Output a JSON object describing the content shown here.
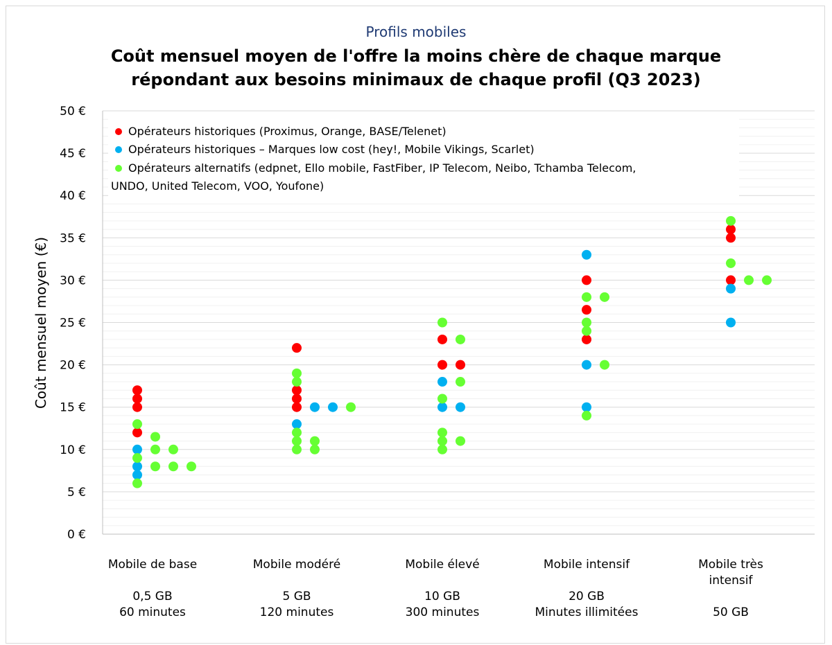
{
  "header": {
    "subtitle": "Profils mobiles",
    "title_line1": "Coût mensuel moyen de l'offre la moins chère de chaque marque",
    "title_line2": "répondant aux besoins minimaux de chaque profil (Q3 2023)"
  },
  "colors": {
    "historiques": "#ff0000",
    "low_cost": "#00b0f0",
    "alternatifs": "#66ff33",
    "grid": "#d9d9d9",
    "title_blue": "#1f3a73"
  },
  "categories": [
    {
      "name": "Mobile de base",
      "spec_line1": "0,5 GB",
      "spec_line2": "60 minutes"
    },
    {
      "name": "Mobile modéré",
      "spec_line1": "5 GB",
      "spec_line2": "120 minutes"
    },
    {
      "name": "Mobile élevé",
      "spec_line1": "10 GB",
      "spec_line2": "300 minutes"
    },
    {
      "name": "Mobile intensif",
      "spec_line1": "20 GB",
      "spec_line2": "Minutes illimitées"
    },
    {
      "name": "Mobile très intensif",
      "spec_line1": "",
      "spec_line2": "50 GB"
    }
  ],
  "chart_data": {
    "type": "scatter",
    "ylabel": "Coût mensuel moyen (€)",
    "xlabel": "",
    "ylim": [
      0,
      50
    ],
    "y_ticks": [
      "0 €",
      "5 €",
      "10 €",
      "15 €",
      "20 €",
      "25 €",
      "30 €",
      "35 €",
      "40 €",
      "45 €",
      "50 €"
    ],
    "grid": true,
    "legend_position": "top-left",
    "categories": [
      "Mobile de base",
      "Mobile modéré",
      "Mobile élevé",
      "Mobile intensif",
      "Mobile très intensif"
    ],
    "series": [
      {
        "name": "Opérateurs historiques (Proximus, Orange, BASE/Telenet)",
        "color": "#ff0000",
        "points": [
          {
            "category": "Mobile de base",
            "y": 17
          },
          {
            "category": "Mobile de base",
            "y": 16
          },
          {
            "category": "Mobile de base",
            "y": 15
          },
          {
            "category": "Mobile de base",
            "y": 12
          },
          {
            "category": "Mobile modéré",
            "y": 22
          },
          {
            "category": "Mobile modéré",
            "y": 17
          },
          {
            "category": "Mobile modéré",
            "y": 15
          },
          {
            "category": "Mobile modéré",
            "y": 16
          },
          {
            "category": "Mobile élevé",
            "y": 20
          },
          {
            "category": "Mobile élevé",
            "y": 23
          },
          {
            "category": "Mobile élevé",
            "y": 20
          },
          {
            "category": "Mobile intensif",
            "y": 30
          },
          {
            "category": "Mobile intensif",
            "y": 26.5
          },
          {
            "category": "Mobile intensif",
            "y": 23
          },
          {
            "category": "Mobile très intensif",
            "y": 36
          },
          {
            "category": "Mobile très intensif",
            "y": 35
          },
          {
            "category": "Mobile très intensif",
            "y": 30
          }
        ]
      },
      {
        "name": "Opérateurs historiques – Marques low cost (hey!, Mobile Vikings, Scarlet)",
        "color": "#00b0f0",
        "points": [
          {
            "category": "Mobile de base",
            "y": 8
          },
          {
            "category": "Mobile de base",
            "y": 7
          },
          {
            "category": "Mobile de base",
            "y": 10
          },
          {
            "category": "Mobile modéré",
            "y": 13
          },
          {
            "category": "Mobile modéré",
            "y": 15
          },
          {
            "category": "Mobile modéré",
            "y": 15
          },
          {
            "category": "Mobile élevé",
            "y": 18
          },
          {
            "category": "Mobile élevé",
            "y": 15
          },
          {
            "category": "Mobile élevé",
            "y": 15
          },
          {
            "category": "Mobile intensif",
            "y": 33
          },
          {
            "category": "Mobile intensif",
            "y": 20
          },
          {
            "category": "Mobile intensif",
            "y": 15
          },
          {
            "category": "Mobile très intensif",
            "y": 29
          },
          {
            "category": "Mobile très intensif",
            "y": 25
          }
        ]
      },
      {
        "name": "Opérateurs alternatifs (edpnet, Ello mobile, FastFiber, IP Telecom, Neibo, Tchamba Telecom, UNDO, United Telecom, VOO, Youfone)",
        "color": "#66ff33",
        "points": [
          {
            "category": "Mobile de base",
            "y": 13
          },
          {
            "category": "Mobile de base",
            "y": 10
          },
          {
            "category": "Mobile de base",
            "y": 9
          },
          {
            "category": "Mobile de base",
            "y": 6
          },
          {
            "category": "Mobile de base",
            "y": 11.5
          },
          {
            "category": "Mobile de base",
            "y": 8
          },
          {
            "category": "Mobile de base",
            "y": 10
          },
          {
            "category": "Mobile de base",
            "y": 8
          },
          {
            "category": "Mobile de base",
            "y": 8
          },
          {
            "category": "Mobile modéré",
            "y": 19
          },
          {
            "category": "Mobile modéré",
            "y": 18
          },
          {
            "category": "Mobile modéré",
            "y": 11
          },
          {
            "category": "Mobile modéré",
            "y": 10
          },
          {
            "category": "Mobile modéré",
            "y": 12
          },
          {
            "category": "Mobile modéré",
            "y": 11
          },
          {
            "category": "Mobile modéré",
            "y": 10
          },
          {
            "category": "Mobile modéré",
            "y": 15
          },
          {
            "category": "Mobile élevé",
            "y": 25
          },
          {
            "category": "Mobile élevé",
            "y": 23
          },
          {
            "category": "Mobile élevé",
            "y": 16
          },
          {
            "category": "Mobile élevé",
            "y": 12
          },
          {
            "category": "Mobile élevé",
            "y": 11
          },
          {
            "category": "Mobile élevé",
            "y": 10
          },
          {
            "category": "Mobile élevé",
            "y": 18
          },
          {
            "category": "Mobile élevé",
            "y": 11
          },
          {
            "category": "Mobile intensif",
            "y": 28
          },
          {
            "category": "Mobile intensif",
            "y": 25
          },
          {
            "category": "Mobile intensif",
            "y": 24
          },
          {
            "category": "Mobile intensif",
            "y": 14
          },
          {
            "category": "Mobile intensif",
            "y": 28
          },
          {
            "category": "Mobile intensif",
            "y": 20
          },
          {
            "category": "Mobile très intensif",
            "y": 37
          },
          {
            "category": "Mobile très intensif",
            "y": 32
          },
          {
            "category": "Mobile très intensif",
            "y": 30
          },
          {
            "category": "Mobile très intensif",
            "y": 30
          }
        ]
      }
    ],
    "legend": [
      {
        "label": "Opérateurs historiques (Proximus, Orange, BASE/Telenet)",
        "color": "#ff0000"
      },
      {
        "label": "Opérateurs historiques – Marques low cost (hey!, Mobile Vikings, Scarlet)",
        "color": "#00b0f0"
      },
      {
        "label_line1": "Opérateurs alternatifs (edpnet, Ello mobile, FastFiber, IP Telecom, Neibo, Tchamba Telecom,",
        "label_line2": "UNDO, United Telecom, VOO, Youfone)",
        "color": "#66ff33"
      }
    ]
  }
}
